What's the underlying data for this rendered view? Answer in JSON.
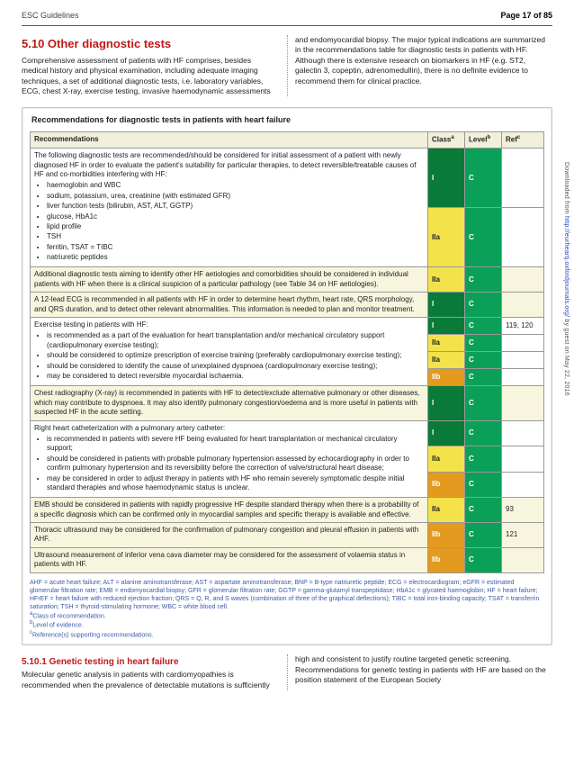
{
  "header": {
    "left": "ESC Guidelines",
    "right": "Page 17 of 85"
  },
  "side_note": {
    "prefix": "Downloaded from ",
    "link": "http://eurheartj.oxfordjournals.org/",
    "suffix": " by guest on May 22, 2016"
  },
  "top": {
    "heading": "5.10 Other diagnostic tests",
    "para": "Comprehensive assessment of patients with HF comprises, besides medical history and physical examination, including adequate imaging techniques, a set of additional diagnostic tests, i.e. laboratory variables, ECG, chest X-ray, exercise testing, invasive haemodynamic assessments and endomyocardial biopsy. The major typical indications are summarized in the recommendations table for diagnostic tests in patients with HF. Although there is extensive research on biomarkers in HF (e.g. ST2, galectin 3, copeptin, adrenomedullin), there is no definite evidence to recommend them for clinical practice."
  },
  "box": {
    "title": "Recommendations for diagnostic tests in patients with heart failure",
    "headers": {
      "rec": "Recommendations",
      "class": "Class",
      "level": "Level",
      "ref": "Ref"
    },
    "sup": {
      "a": "a",
      "b": "b",
      "c": "c"
    },
    "rows": [
      {
        "intro": "The following diagnostic tests are recommended/should be considered for initial assessment of a patient with newly diagnosed HF in order to evaluate the patient's suitability for particular therapies, to detect reversible/treatable causes of HF and co-morbidities interfering with HF:",
        "bullets": [
          "haemoglobin and WBC",
          "sodium, potassium, urea, creatinine (with estimated GFR)",
          "liver function tests (bilirubin, AST, ALT, GGTP)",
          "glucose, HbA1c",
          "lipid profile",
          "TSH",
          "ferritin, TSAT = TIBC",
          "natriuretic peptides"
        ],
        "cells": [
          [
            "I",
            "C",
            ""
          ],
          [
            "IIa",
            "C",
            ""
          ]
        ],
        "split": true
      },
      {
        "text": "Additional diagnostic tests aiming to identify other HF aetiologies and comorbidities should be considered in individual patients with HF when there is a clinical suspicion of a particular pathology (see Table 34 on HF aetiologies).",
        "cells": [
          [
            "IIa",
            "C",
            ""
          ]
        ]
      },
      {
        "text": "A 12-lead ECG is recommended in all patients with HF in order to determine heart rhythm, heart rate, QRS morphology, and QRS duration, and to detect other relevant abnormalities. This information is needed to plan and monitor treatment.",
        "cells": [
          [
            "I",
            "C",
            ""
          ]
        ]
      },
      {
        "intro": "Exercise testing in patients with HF:",
        "bullets": [
          "is recommended as a part of the evaluation for heart transplantation and/or mechanical circulatory support (cardiopulmonary exercise testing);",
          "should be considered to optimize prescription of exercise training (preferably cardiopulmonary exercise testing);",
          "should be considered to identify the cause of unexplained dyspnoea (cardiopulmonary exercise testing);",
          "may be considered to detect reversible myocardial ischaemia."
        ],
        "cells": [
          [
            "I",
            "C",
            "119, 120"
          ],
          [
            "IIa",
            "C",
            ""
          ],
          [
            "IIa",
            "C",
            ""
          ],
          [
            "IIb",
            "C",
            ""
          ]
        ]
      },
      {
        "text": "Chest radiography (X-ray) is recommended in patients with HF to detect/exclude alternative pulmonary or other diseases, which may contribute to dyspnoea. It may also identify pulmonary congestion/oedema and is more useful in patients with suspected HF in the acute setting.",
        "cells": [
          [
            "I",
            "C",
            ""
          ]
        ]
      },
      {
        "intro": "Right heart catheterization with a pulmonary artery catheter:",
        "bullets": [
          "is recommended in patients with severe HF being evaluated for heart transplantation or mechanical circulatory support;",
          "should be considered in patients with probable pulmonary hypertension assessed by echocardiography in order to confirm pulmonary hypertension and its reversibility before the correction of valve/structural heart disease;",
          "may be considered in order to adjust therapy in patients with HF who remain severely symptomatic despite initial standard therapies and whose haemodynamic status is unclear."
        ],
        "cells": [
          [
            "I",
            "C",
            ""
          ],
          [
            "IIa",
            "C",
            ""
          ],
          [
            "IIb",
            "C",
            ""
          ]
        ]
      },
      {
        "text": "EMB should be considered in patients with rapidly progressive HF despite standard therapy when there is a probability of a specific diagnosis which can be confirmed only in myocardial samples and specific therapy is available and effective.",
        "cells": [
          [
            "IIa",
            "C",
            "93"
          ]
        ]
      },
      {
        "text": "Thoracic ultrasound may be considered for the confirmation of pulmonary congestion and pleural effusion in patients with AHF.",
        "cells": [
          [
            "IIb",
            "C",
            "121"
          ]
        ]
      },
      {
        "text": "Ultrasound measurement of inferior vena cava diameter may be considered for the assessment of volaemia status in patients with HF.",
        "cells": [
          [
            "IIb",
            "C",
            ""
          ]
        ]
      }
    ]
  },
  "footnotes": {
    "abbrev": "AHF = acute heart failure; ALT = alanine aminotransferase; AST = aspartate aminotransferase; BNP = B-type natriuretic peptide; ECG = electrocardiogram; eGFR = estimated glomerular filtration rate; EMB = endomyocardial biopsy; GFR = glomerular filtration rate; GGTP = gamma-glutamyl transpeptidase; HbA1c = glycated haemoglobin; HF = heart failure; HFrEF = heart failure with reduced ejection fraction; QRS = Q, R, and S waves (combination of three of the graphical deflections); TIBC = total iron-binding capacity; TSAT = transferrin saturation; TSH = thyroid-stimulating hormone; WBC = white blood cell.",
    "a": "Class of recommendation.",
    "b": "Level of evidence.",
    "c": "Reference(s) supporting recommendations."
  },
  "bottom": {
    "heading": "5.10.1 Genetic testing in heart failure",
    "para": "Molecular genetic analysis in patients with cardiomyopathies is recommended when the prevalence of detectable mutations is sufficiently high and consistent to justify routine targeted genetic screening. Recommendations for genetic testing in patients with HF are based on the position statement of the European Society"
  },
  "colors": {
    "class_I": "#0a7a38",
    "class_IIa": "#f3e24a",
    "class_IIb": "#e39a1f",
    "level_C": "#0ba058"
  }
}
